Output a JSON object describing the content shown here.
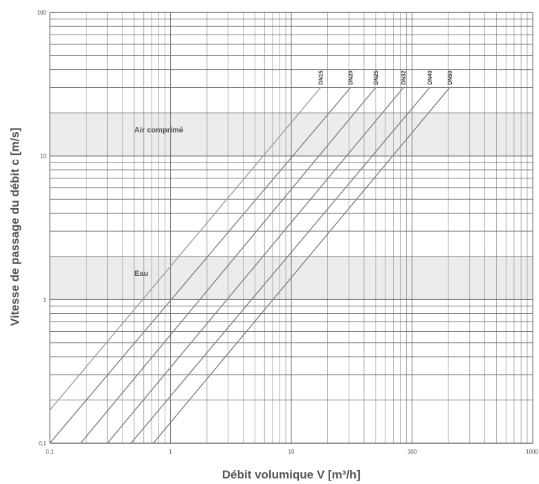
{
  "chart_data": {
    "type": "line",
    "title": "",
    "xlabel": "Débit volumique V [m³/h]",
    "ylabel": "Vitesse de passage du débit c [m/s]",
    "x_scale": "log",
    "y_scale": "log",
    "xlim": [
      0.1,
      1000
    ],
    "ylim": [
      0.1,
      100
    ],
    "grid": true,
    "x_ticks": [
      "0,1",
      "1",
      "10",
      "100",
      "1000"
    ],
    "y_ticks": [
      "0,1",
      "1",
      "10",
      "100"
    ],
    "bands": [
      {
        "label": "Air comprimé",
        "y": [
          10,
          20
        ],
        "color": "#ececec"
      },
      {
        "label": "Eau",
        "y": [
          1,
          2
        ],
        "color": "#ececec"
      }
    ],
    "series": [
      {
        "name": "DN15",
        "points": [
          [
            0.1,
            0.17
          ],
          [
            17.5,
            30
          ]
        ]
      },
      {
        "name": "DN20",
        "points": [
          [
            0.1,
            0.1
          ],
          [
            31,
            30
          ]
        ]
      },
      {
        "name": "DN25",
        "points": [
          [
            0.18,
            0.1
          ],
          [
            50,
            30
          ]
        ]
      },
      {
        "name": "DN32",
        "points": [
          [
            0.3,
            0.1
          ],
          [
            85,
            30
          ]
        ]
      },
      {
        "name": "DN40",
        "points": [
          [
            0.47,
            0.1
          ],
          [
            140,
            30
          ]
        ]
      },
      {
        "name": "DN50",
        "points": [
          [
            0.72,
            0.1
          ],
          [
            205,
            30
          ]
        ]
      }
    ]
  }
}
